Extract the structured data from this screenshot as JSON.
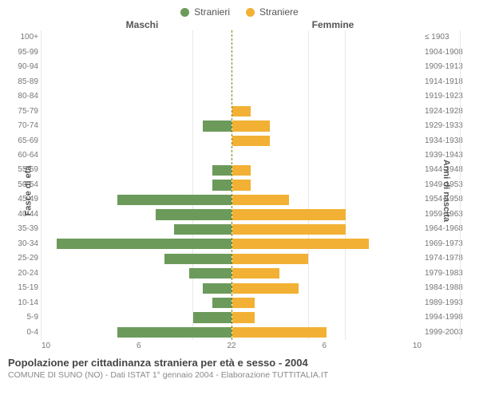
{
  "chart": {
    "type": "population_pyramid",
    "legend": [
      {
        "label": "Stranieri",
        "color": "#6c9a5b"
      },
      {
        "label": "Straniere",
        "color": "#f2b134"
      }
    ],
    "panel_titles": {
      "left": "Maschi",
      "right": "Femmine"
    },
    "y_axis_left_title": "Fasce di età",
    "y_axis_right_title": "Anni di nascita",
    "age_groups": [
      "100+",
      "95-99",
      "90-94",
      "85-89",
      "80-84",
      "75-79",
      "70-74",
      "65-69",
      "60-64",
      "55-59",
      "50-54",
      "45-49",
      "40-44",
      "35-39",
      "30-34",
      "25-29",
      "20-24",
      "15-19",
      "10-14",
      "5-9",
      "0-4"
    ],
    "birth_years": [
      "≤ 1903",
      "1904-1908",
      "1909-1913",
      "1914-1918",
      "1919-1923",
      "1924-1928",
      "1929-1933",
      "1934-1938",
      "1939-1943",
      "1944-1948",
      "1949-1953",
      "1954-1958",
      "1959-1963",
      "1964-1968",
      "1969-1973",
      "1974-1978",
      "1979-1983",
      "1984-1988",
      "1989-1993",
      "1994-1998",
      "1999-2003"
    ],
    "males": [
      0,
      0,
      0,
      0,
      0,
      0,
      1.5,
      0,
      0,
      1,
      1,
      6,
      4,
      3,
      9.2,
      3.5,
      2.2,
      1.5,
      1,
      2,
      6
    ],
    "females": [
      0,
      0,
      0,
      0,
      0,
      1,
      2,
      2,
      0,
      1,
      1,
      3,
      6,
      6,
      7.2,
      4,
      2.5,
      3.5,
      1.2,
      1.2,
      5
    ],
    "x_max": 10,
    "x_ticks_left": [
      "10",
      "6",
      "2"
    ],
    "x_ticks_right": [
      "2",
      "6",
      "10"
    ],
    "colors": {
      "male_bar": "#6c9a5b",
      "female_bar": "#f2b134",
      "grid": "#e8e8e8",
      "center_line": "#808000",
      "text": "#555555",
      "tick_text": "#777777",
      "background": "#ffffff"
    },
    "fonts": {
      "family": "Arial",
      "legend_size": 12,
      "tick_size": 10,
      "title_size": 13
    }
  },
  "footer": {
    "title": "Popolazione per cittadinanza straniera per età e sesso - 2004",
    "subtitle": "COMUNE DI SUNO (NO) - Dati ISTAT 1° gennaio 2004 - Elaborazione TUTTITALIA.IT"
  }
}
